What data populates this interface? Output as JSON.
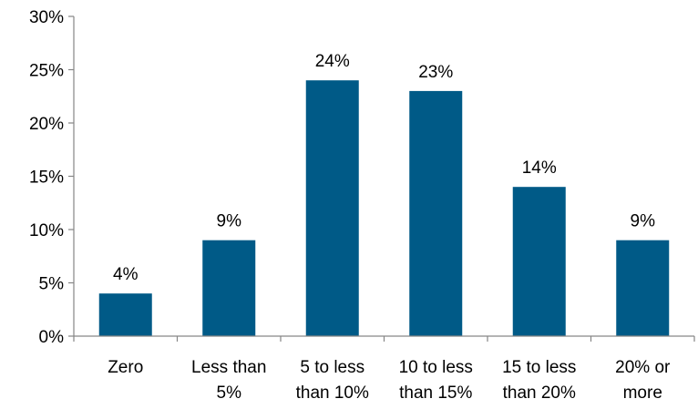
{
  "chart_data": {
    "type": "bar",
    "categories": [
      [
        "Zero"
      ],
      [
        "Less than",
        "5%"
      ],
      [
        "5 to less",
        "than 10%"
      ],
      [
        "10 to less",
        "than 15%"
      ],
      [
        "15 to less",
        "than 20%"
      ],
      [
        "20% or",
        "more"
      ]
    ],
    "values": [
      4,
      9,
      24,
      23,
      14,
      9
    ],
    "data_labels": [
      "4%",
      "9%",
      "24%",
      "23%",
      "14%",
      "9%"
    ],
    "title": "",
    "xlabel": "",
    "ylabel": "",
    "ylim": [
      0,
      30
    ],
    "yticks": [
      0,
      5,
      10,
      15,
      20,
      25,
      30
    ],
    "ytick_labels": [
      "0%",
      "5%",
      "10%",
      "15%",
      "20%",
      "25%",
      "30%"
    ],
    "grid": false,
    "legend": "none",
    "bar_color": "#005A87",
    "axis_color": "#868686"
  }
}
